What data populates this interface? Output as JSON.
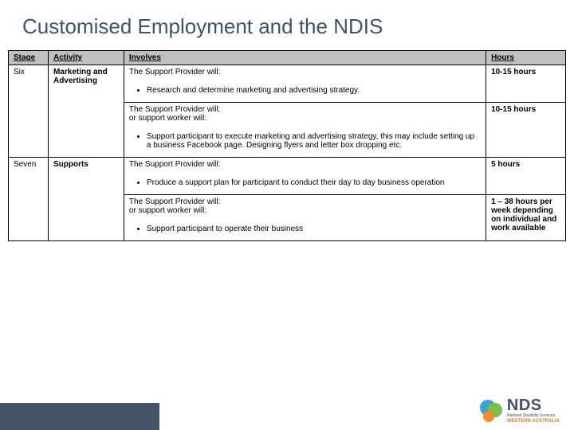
{
  "title": "Customised Employment and the NDIS",
  "headers": {
    "stage": "Stage",
    "activity": "Activity",
    "involves": "Involves",
    "hours": "Hours"
  },
  "rows": {
    "six": {
      "stage": "Six",
      "activity": "Marketing and Advertising",
      "involves1_lead": "The Support Provider will:",
      "involves1_b1": "Research and determine marketing and advertising strategy.",
      "hours1": "10-15 hours",
      "involves2_lead1": "The Support Provider will:",
      "involves2_lead2": "or support worker will:",
      "involves2_b1": "Support participant to execute marketing and advertising strategy, this may include setting up a business Facebook page. Designing flyers and letter box dropping etc.",
      "hours2": "10-15 hours"
    },
    "seven": {
      "stage": "Seven",
      "activity": "Supports",
      "involves1_lead": "The Support Provider will:",
      "involves1_b1": "Produce a support plan for participant to conduct their day to day business operation",
      "hours1": "5 hours",
      "involves2_lead1": "The Support Provider will:",
      "involves2_lead2": "or support worker will:",
      "involves2_b1": "Support participant to operate their business",
      "hours2": "1 – 38 hours per week depending on individual and work available"
    }
  },
  "logo": {
    "nds": "NDS",
    "sub": "National Disability Services",
    "wa": "WESTERN AUSTRALIA"
  }
}
